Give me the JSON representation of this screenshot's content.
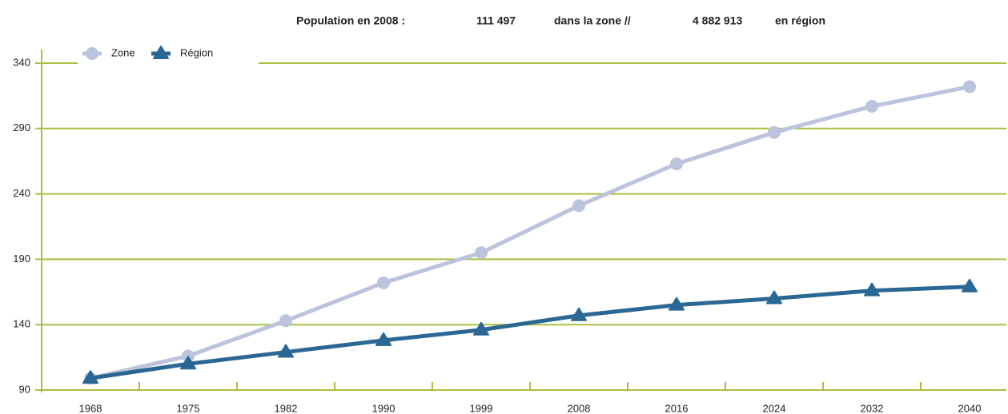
{
  "chart_data": {
    "type": "line",
    "title": [
      "Population en 2008 :",
      "111 497",
      "dans la zone //",
      "4 882 913",
      "en région"
    ],
    "categories": [
      "1968",
      "1975",
      "1982",
      "1990",
      "1999",
      "2008",
      "2016",
      "2024",
      "2032",
      "2040"
    ],
    "series": [
      {
        "name": "Zone",
        "color": "#bcc3dc",
        "marker": "circle",
        "values": [
          99,
          116,
          143,
          172,
          195,
          231,
          263,
          287,
          307,
          322
        ]
      },
      {
        "name": "Région",
        "color": "#2a6794",
        "marker": "triangle",
        "values": [
          99,
          110,
          119,
          128,
          136,
          147,
          155,
          160,
          166,
          169
        ]
      }
    ],
    "ylim": [
      90,
      340
    ],
    "yticks": [
      90,
      140,
      190,
      240,
      290,
      340
    ],
    "grid": true,
    "grid_color": "#a8c040",
    "legend": "top-left"
  }
}
